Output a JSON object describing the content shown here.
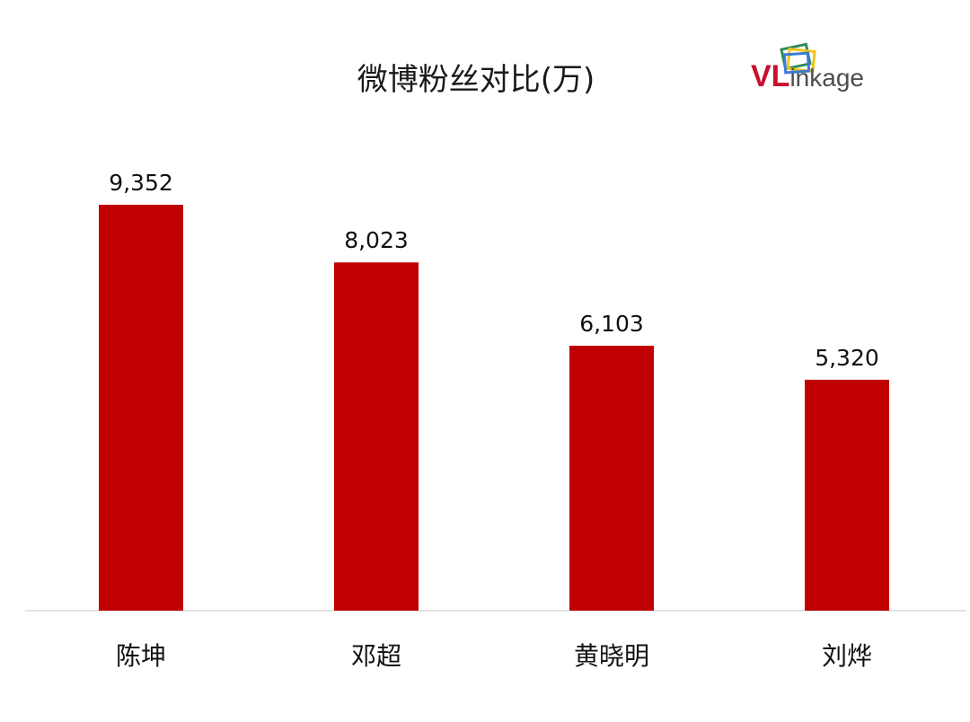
{
  "chart_data": {
    "type": "bar",
    "title": "微博粉丝对比(万)",
    "categories": [
      "陈坤",
      "邓超",
      "黄晓明",
      "刘烨"
    ],
    "values": [
      9352,
      8023,
      6103,
      5320
    ],
    "value_labels": [
      "9,352",
      "8,023",
      "6,103",
      "5,320"
    ],
    "ylim": [
      0,
      9352
    ],
    "grid": false,
    "legend": "none",
    "bar_color": "#c00000",
    "axis_color": "#d9d9d9"
  },
  "logo": {
    "text_v": "VL",
    "text_rest": "inkage",
    "red": "#c8102e",
    "gray": "#4d4d4d",
    "frame_colors": [
      "#2e8b57",
      "#f0c419",
      "#3a7bd5"
    ]
  }
}
